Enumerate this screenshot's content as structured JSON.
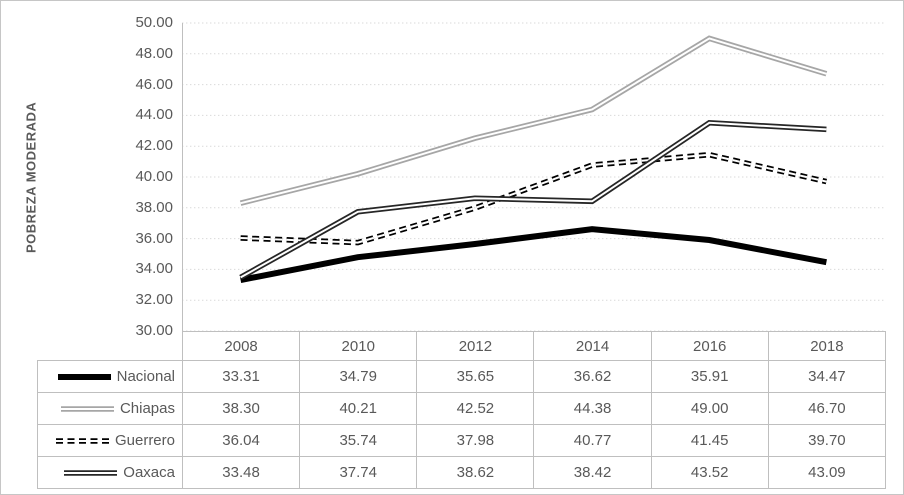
{
  "chart_data": {
    "type": "line",
    "title": "",
    "xlabel": "",
    "ylabel": "POBREZA MODERADA",
    "categories": [
      "2008",
      "2010",
      "2012",
      "2014",
      "2016",
      "2018"
    ],
    "series": [
      {
        "name": "Nacional",
        "values": [
          33.31,
          34.79,
          35.65,
          36.62,
          35.91,
          34.47
        ],
        "color": "#000000",
        "style": "solid-thick"
      },
      {
        "name": "Chiapas",
        "values": [
          38.3,
          40.21,
          42.52,
          44.38,
          49.0,
          46.7
        ],
        "color": "#a6a6a6",
        "style": "double"
      },
      {
        "name": "Guerrero",
        "values": [
          36.04,
          35.74,
          37.98,
          40.77,
          41.45,
          39.7
        ],
        "color": "#000000",
        "style": "dashed-double"
      },
      {
        "name": "Oaxaca",
        "values": [
          33.48,
          37.74,
          38.62,
          38.42,
          43.52,
          43.09
        ],
        "color": "#262626",
        "style": "double"
      }
    ],
    "ylim": [
      30,
      50
    ],
    "ytick_step": 2,
    "ytick_labels": [
      "50.00",
      "48.00",
      "46.00",
      "44.00",
      "42.00",
      "40.00",
      "38.00",
      "36.00",
      "34.00",
      "32.00",
      "30.00"
    ],
    "grid": true,
    "legend_position": "table-left",
    "value_decimals": 2
  },
  "colors": {
    "text": "#595959",
    "grid": "#d9d9d9",
    "axis": "#bfbfbf",
    "table_border": "#bfbfbf",
    "frame_border": "#c6c6c6",
    "background": "#ffffff"
  }
}
